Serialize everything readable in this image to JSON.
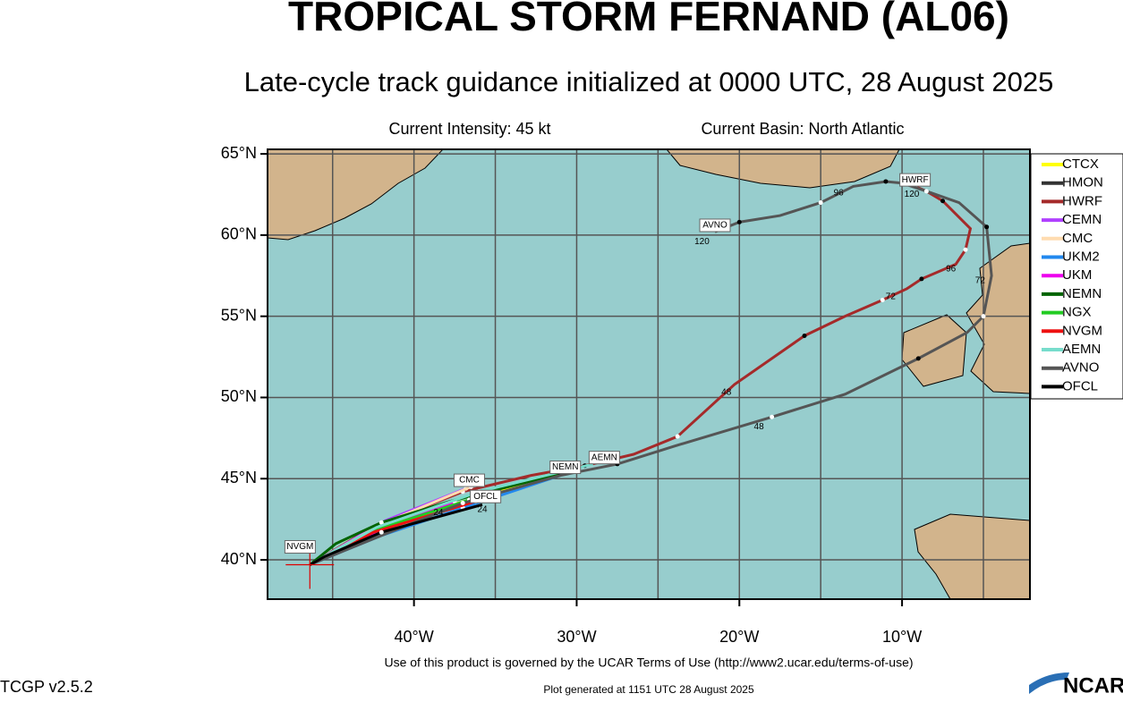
{
  "title": "TROPICAL STORM FERNAND (AL06)",
  "subtitle": "Late-cycle track guidance initialized at 0000 UTC, 28 August 2025",
  "intensity": "Current Intensity: 45 kt",
  "basin": "Current Basin: North Atlantic",
  "map": {
    "lonlim": [
      -49,
      -2.14
    ],
    "latlim": [
      37.58,
      65.28
    ],
    "lat_ticks": [
      {
        "value": 65,
        "label": "65°N"
      },
      {
        "value": 60,
        "label": "60°N"
      },
      {
        "value": 55,
        "label": "55°N"
      },
      {
        "value": 50,
        "label": "50°N"
      },
      {
        "value": 45,
        "label": "45°N"
      },
      {
        "value": 40,
        "label": "40°N"
      }
    ],
    "lon_ticks": [
      {
        "value": -40,
        "label": "40°W"
      },
      {
        "value": -30,
        "label": "30°W"
      },
      {
        "value": -20,
        "label": "20°W"
      },
      {
        "value": -10,
        "label": "10°W"
      }
    ],
    "lon_gridlines": [
      -45,
      -40,
      -35,
      -30,
      -25,
      -20,
      -15,
      -10,
      -5
    ],
    "current_position": [
      39.7,
      -46.4
    ]
  },
  "tracks": [
    {
      "name": "CTCX",
      "color": "#ffff00",
      "points": [
        [
          39.7,
          -46.4
        ],
        [
          42,
          -42.6
        ],
        [
          44,
          -35.5
        ],
        [
          45.6,
          -30.5
        ]
      ]
    },
    {
      "name": "HMON",
      "color": "#333333",
      "points": [
        [
          39.7,
          -46.4
        ],
        [
          42.1,
          -42.4
        ],
        [
          44.4,
          -36.5
        ]
      ]
    },
    {
      "name": "HWRF",
      "color": "#a52a2a",
      "points": [
        [
          39.7,
          -46.4
        ],
        [
          42,
          -42.5
        ],
        [
          44.2,
          -37
        ],
        [
          45.2,
          -32.8
        ],
        [
          45.8,
          -29.5
        ],
        [
          46.5,
          -26.5
        ],
        [
          47.6,
          -23.8
        ],
        [
          50.8,
          -20.3
        ],
        [
          53.8,
          -16
        ],
        [
          55,
          -13.5
        ],
        [
          56,
          -11.2
        ],
        [
          56.7,
          -9.7
        ],
        [
          57.3,
          -8.8
        ],
        [
          58.2,
          -6.7
        ],
        [
          59.1,
          -6.1
        ],
        [
          60.4,
          -5.8
        ],
        [
          62.1,
          -7.5
        ],
        [
          62.7,
          -8.5
        ],
        [
          63,
          -9.2
        ]
      ]
    },
    {
      "name": "CEMN",
      "color": "#b040ff",
      "points": [
        [
          39.7,
          -46.4
        ],
        [
          42.4,
          -41.8
        ],
        [
          44.4,
          -36.8
        ]
      ]
    },
    {
      "name": "CMC",
      "color": "#ffdcb0",
      "points": [
        [
          39.7,
          -46.4
        ],
        [
          42.2,
          -42
        ],
        [
          44.5,
          -36.5
        ]
      ]
    },
    {
      "name": "UKM2",
      "color": "#2288ee",
      "points": [
        [
          39.7,
          -46.4
        ],
        [
          41.5,
          -42
        ],
        [
          43.2,
          -37
        ],
        [
          45.2,
          -31
        ]
      ]
    },
    {
      "name": "UKM",
      "color": "#ee00ee",
      "points": [
        [
          39.7,
          -46.4
        ],
        [
          41.8,
          -42.2
        ],
        [
          43.6,
          -37.5
        ]
      ]
    },
    {
      "name": "NEMN",
      "color": "#006400",
      "points": [
        [
          39.7,
          -46.4
        ],
        [
          41,
          -44.8
        ],
        [
          42.3,
          -42
        ],
        [
          43.6,
          -37.8
        ],
        [
          45.3,
          -31
        ]
      ]
    },
    {
      "name": "NGX",
      "color": "#22cc22",
      "points": [
        [
          39.7,
          -46.4
        ],
        [
          41.9,
          -42.2
        ],
        [
          43.7,
          -36.6
        ]
      ]
    },
    {
      "name": "NVGM",
      "color": "#ee1111",
      "points": [
        [
          39.7,
          -46.4
        ],
        [
          41.7,
          -42.5
        ],
        [
          43.6,
          -36.2
        ]
      ]
    },
    {
      "name": "AEMN",
      "color": "#77ddcc",
      "points": [
        [
          39.7,
          -46.4
        ],
        [
          42,
          -42.3
        ],
        [
          44.2,
          -36
        ],
        [
          45.9,
          -29
        ]
      ]
    },
    {
      "name": "AVNO",
      "color": "#555555",
      "points": [
        [
          39.7,
          -46.4
        ],
        [
          41.5,
          -42
        ],
        [
          43.5,
          -37
        ],
        [
          45.2,
          -31
        ],
        [
          45.9,
          -27.5
        ],
        [
          47,
          -24
        ],
        [
          48.8,
          -18
        ],
        [
          50.2,
          -13.5
        ],
        [
          52.4,
          -9
        ],
        [
          54,
          -6
        ],
        [
          55,
          -5
        ],
        [
          57.5,
          -4.5
        ],
        [
          60.5,
          -4.8
        ],
        [
          62,
          -6.5
        ],
        [
          62.7,
          -8.5
        ],
        [
          63.2,
          -10
        ],
        [
          63.3,
          -11
        ],
        [
          63,
          -13
        ],
        [
          62,
          -15
        ],
        [
          61.2,
          -17.5
        ],
        [
          60.8,
          -20
        ],
        [
          60.2,
          -21.5
        ]
      ]
    },
    {
      "name": "OFCL",
      "color": "#000000",
      "points": [
        [
          39.7,
          -46.4
        ],
        [
          40.2,
          -45.5
        ],
        [
          41.7,
          -42
        ],
        [
          43.4,
          -35.8
        ]
      ]
    }
  ],
  "track_labels": [
    {
      "text": "HWRF",
      "lat": 63.4,
      "lon": -9.2
    },
    {
      "text": "AVNO",
      "lat": 60.6,
      "lon": -21.5
    },
    {
      "text": "AEMN",
      "lat": 46.3,
      "lon": -28.3
    },
    {
      "text": "NEMN",
      "lat": 45.7,
      "lon": -30.7
    },
    {
      "text": "CMC",
      "lat": 44.9,
      "lon": -36.6
    },
    {
      "text": "OFCL",
      "lat": 43.9,
      "lon": -35.6
    },
    {
      "text": "NVGM",
      "lat": 40.8,
      "lon": -47
    }
  ],
  "hour_labels": [
    {
      "text": "120",
      "lat": 62.5,
      "lon": -9.4
    },
    {
      "text": "120",
      "lat": 59.6,
      "lon": -22.3
    },
    {
      "text": "96",
      "lat": 62.6,
      "lon": -13.9
    },
    {
      "text": "96",
      "lat": 57.9,
      "lon": -7
    },
    {
      "text": "72",
      "lat": 56.2,
      "lon": -10.7
    },
    {
      "text": "72",
      "lat": 57.2,
      "lon": -5.2
    },
    {
      "text": "48",
      "lat": 50.3,
      "lon": -20.8
    },
    {
      "text": "48",
      "lat": 48.2,
      "lon": -18.8
    },
    {
      "text": "24",
      "lat": 42.9,
      "lon": -38.5
    },
    {
      "text": "24",
      "lat": 43.1,
      "lon": -35.8
    }
  ],
  "footer": {
    "terms": "Use of this product is governed by the UCAR Terms of Use (http://www2.ucar.edu/terms-of-use)",
    "version": "TCGP v2.5.2",
    "generated": "Plot generated at 1151 UTC   28 August 2025",
    "logo": "NCAR"
  }
}
